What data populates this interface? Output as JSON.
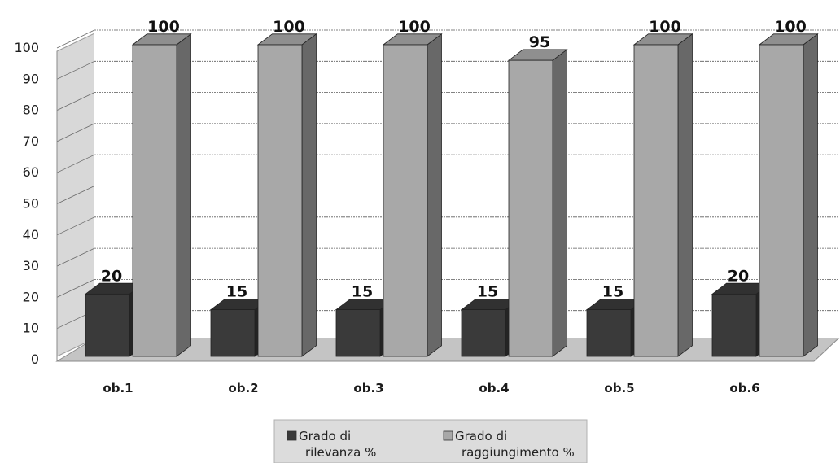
{
  "chart_data": {
    "type": "bar",
    "style": "3d-clustered-column",
    "categories": [
      "ob.1",
      "ob.2",
      "ob.3",
      "ob.4",
      "ob.5",
      "ob.6"
    ],
    "series": [
      {
        "name": "Grado di rilevanza %",
        "name_lines": [
          "Grado di",
          "rilevanza %"
        ],
        "color": "#3a3a3a",
        "values": [
          20,
          15,
          15,
          15,
          15,
          20
        ]
      },
      {
        "name": "Grado di raggiungimento %",
        "name_lines": [
          "Grado di",
          "raggiungimento %"
        ],
        "color": "#a8a8a8",
        "values": [
          100,
          100,
          100,
          95,
          100,
          100
        ]
      }
    ],
    "ylim": [
      0,
      100
    ],
    "yticks": [
      0,
      10,
      20,
      30,
      40,
      50,
      60,
      70,
      80,
      90,
      100
    ],
    "grid": true,
    "data_labels": true,
    "legend_position": "bottom",
    "title": "",
    "xlabel": "",
    "ylabel": ""
  }
}
